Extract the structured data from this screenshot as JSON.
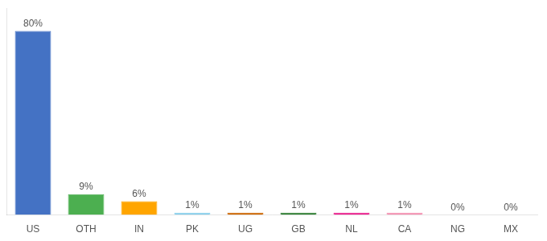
{
  "chart_data": {
    "type": "bar",
    "categories": [
      "US",
      "OTH",
      "IN",
      "PK",
      "UG",
      "GB",
      "NL",
      "CA",
      "NG",
      "MX"
    ],
    "values": [
      80,
      9,
      6,
      1,
      1,
      1,
      1,
      1,
      0,
      0
    ],
    "value_labels": [
      "80%",
      "9%",
      "6%",
      "1%",
      "1%",
      "1%",
      "1%",
      "1%",
      "0%",
      "0%"
    ],
    "colors": [
      "#4472C4",
      "#4CAF50",
      "#FFA500",
      "#87CEEB",
      "#CC6600",
      "#2E7D32",
      "#E91E8C",
      "#F48FB1",
      "#FFFFFF",
      "#FFFFFF"
    ],
    "ylim": [
      0,
      90
    ],
    "data_labels": true,
    "tick_labels": "x",
    "grid": false
  }
}
